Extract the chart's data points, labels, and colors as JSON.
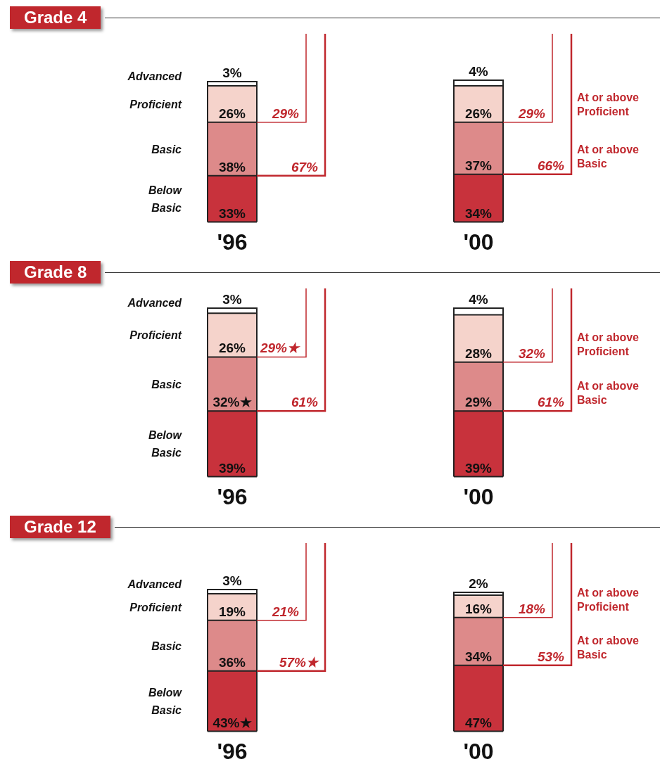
{
  "chart_data": [
    {
      "type": "bar",
      "title": "Grade 4",
      "categories": [
        "'96",
        "'00"
      ],
      "stacked": true,
      "tick_labels": "x",
      "grid": false,
      "legend": false,
      "series": [
        {
          "name": "Below Basic",
          "color": "#c8323c",
          "values": [
            33,
            34
          ],
          "value_labels": [
            "33%",
            "34%"
          ]
        },
        {
          "name": "Basic",
          "color": "#dd8a8a",
          "values": [
            38,
            37
          ],
          "value_labels": [
            "38%",
            "37%"
          ]
        },
        {
          "name": "Proficient",
          "color": "#f5d3cb",
          "values": [
            26,
            26
          ],
          "value_labels": [
            "26%",
            "26%"
          ]
        },
        {
          "name": "Advanced",
          "color": "#ffffff",
          "values": [
            3,
            4
          ],
          "value_labels": [
            "3%",
            "4%"
          ]
        }
      ],
      "annotations": [
        "29%",
        "67%",
        "29%",
        "66%",
        "At or above Proficient",
        "At or above Basic"
      ]
    },
    {
      "type": "bar",
      "title": "Grade 8",
      "categories": [
        "'96",
        "'00"
      ],
      "stacked": true,
      "tick_labels": "x",
      "grid": false,
      "legend": false,
      "series": [
        {
          "name": "Below Basic",
          "color": "#c8323c",
          "values": [
            39,
            39
          ],
          "value_labels": [
            "39%",
            "39%"
          ]
        },
        {
          "name": "Basic",
          "color": "#dd8a8a",
          "values": [
            32,
            29
          ],
          "value_labels": [
            "32%★",
            "29%"
          ]
        },
        {
          "name": "Proficient",
          "color": "#f5d3cb",
          "values": [
            26,
            28
          ],
          "value_labels": [
            "26%",
            "28%"
          ]
        },
        {
          "name": "Advanced",
          "color": "#ffffff",
          "values": [
            3,
            4
          ],
          "value_labels": [
            "3%",
            "4%"
          ]
        }
      ],
      "annotations": [
        "29%★",
        "61%",
        "32%",
        "61%",
        "At or above Proficient",
        "At or above Basic"
      ]
    },
    {
      "type": "bar",
      "title": "Grade 12",
      "categories": [
        "'96",
        "'00"
      ],
      "stacked": true,
      "tick_labels": "x",
      "grid": false,
      "legend": false,
      "series": [
        {
          "name": "Below Basic",
          "color": "#c8323c",
          "values": [
            43,
            47
          ],
          "value_labels": [
            "43%★",
            "47%"
          ]
        },
        {
          "name": "Basic",
          "color": "#dd8a8a",
          "values": [
            36,
            34
          ],
          "value_labels": [
            "36%",
            "34%"
          ]
        },
        {
          "name": "Proficient",
          "color": "#f5d3cb",
          "values": [
            19,
            16
          ],
          "value_labels": [
            "19%",
            "16%"
          ]
        },
        {
          "name": "Advanced",
          "color": "#ffffff",
          "values": [
            3,
            2
          ],
          "value_labels": [
            "3%",
            "2%"
          ]
        }
      ],
      "annotations": [
        "21%",
        "57%★",
        "18%",
        "53%",
        "At or above Proficient",
        "At or above Basic"
      ]
    }
  ]
}
